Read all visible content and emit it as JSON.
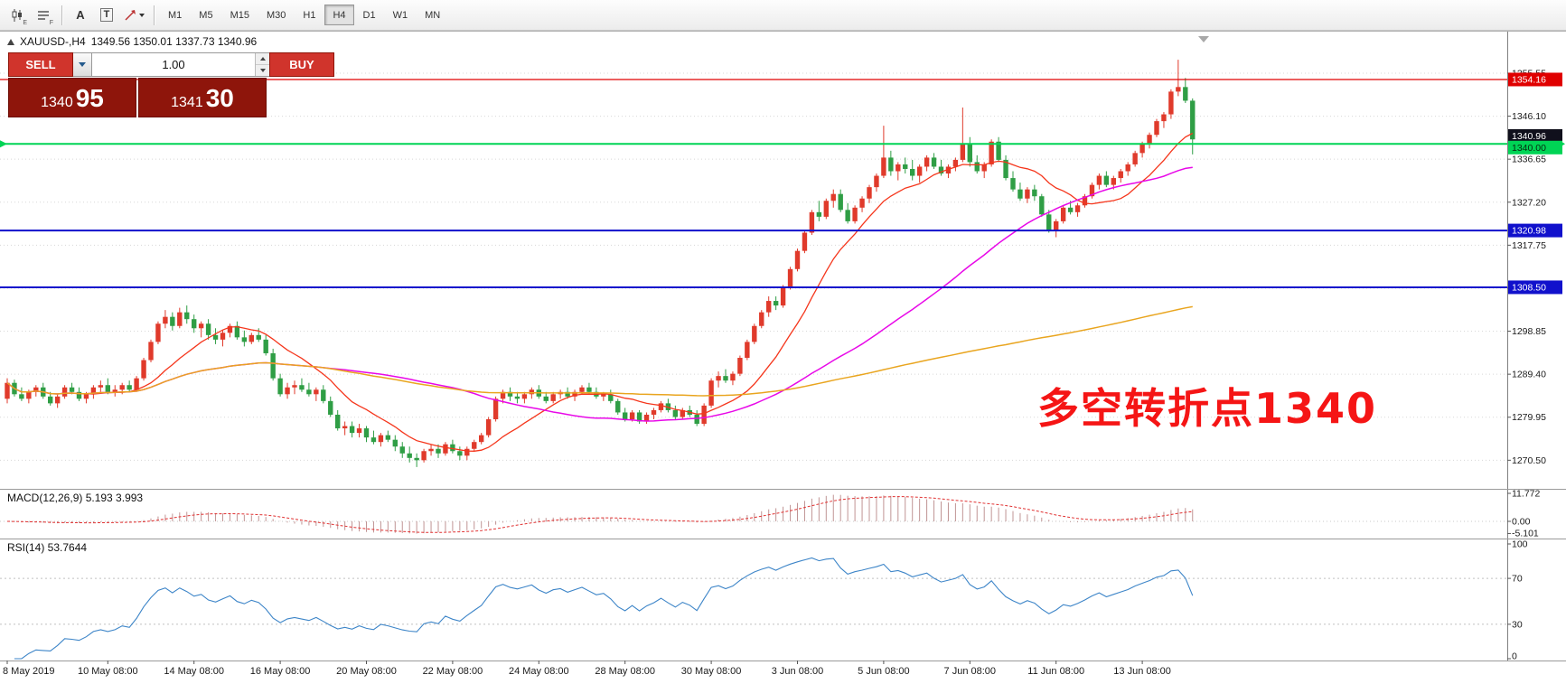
{
  "toolbar": {
    "icons": [
      {
        "name": "candlestick-chart-icon",
        "sub": "E"
      },
      {
        "name": "line-list-icon",
        "sub": "F"
      },
      {
        "name": "annotation-tool-icon",
        "glyph": "A"
      },
      {
        "name": "text-tool-icon",
        "glyph": "T"
      },
      {
        "name": "shapes-tool-icon"
      }
    ],
    "timeframes": [
      "M1",
      "M5",
      "M15",
      "M30",
      "H1",
      "H4",
      "D1",
      "W1",
      "MN"
    ],
    "active_timeframe": "H4"
  },
  "chart_header": {
    "symbol_period": "XAUUSD-,H4",
    "ohlc": "1349.56 1350.01 1337.73 1340.96"
  },
  "trade_panel": {
    "sell_label": "SELL",
    "buy_label": "BUY",
    "volume": "1.00",
    "sell_price_int": "1340",
    "sell_price_frac": "95",
    "buy_price_int": "1341",
    "buy_price_frac": "30"
  },
  "annotation": {
    "text": "多空转折点1340",
    "color": "#f51515"
  },
  "colors": {
    "sell_buy_button": "#d0342c",
    "price_display_bg": "#8e150b",
    "price_display_border": "#6d0e06"
  },
  "chart_data": {
    "type": "candlestick",
    "symbol": "XAUUSD-",
    "timeframe": "H4",
    "ylim": [
      1266.0,
      1361.5
    ],
    "bull_color": "#e03a2b",
    "bear_color": "#2f9e45",
    "grid": true,
    "y_ticks": [
      1355.55,
      1346.1,
      1336.65,
      1327.2,
      1317.75,
      1308.3,
      1298.85,
      1289.4,
      1279.95,
      1270.5
    ],
    "x_ticks": [
      {
        "bar": 0,
        "label": "8 May 2019"
      },
      {
        "bar": 14,
        "label": "10 May 08:00"
      },
      {
        "bar": 26,
        "label": "14 May 08:00"
      },
      {
        "bar": 38,
        "label": "16 May 08:00"
      },
      {
        "bar": 50,
        "label": "20 May 08:00"
      },
      {
        "bar": 62,
        "label": "22 May 08:00"
      },
      {
        "bar": 74,
        "label": "24 May 08:00"
      },
      {
        "bar": 86,
        "label": "28 May 08:00"
      },
      {
        "bar": 98,
        "label": "30 May 08:00"
      },
      {
        "bar": 110,
        "label": "3 Jun 08:00"
      },
      {
        "bar": 122,
        "label": "5 Jun 08:00"
      },
      {
        "bar": 134,
        "label": "7 Jun 08:00"
      },
      {
        "bar": 146,
        "label": "11 Jun 08:00"
      },
      {
        "bar": 158,
        "label": "13 Jun 08:00"
      }
    ],
    "candles": [
      [
        1284,
        1288.5,
        1283,
        1287.5
      ],
      [
        1287.5,
        1288.2,
        1284.5,
        1285
      ],
      [
        1285,
        1286.5,
        1283.5,
        1284
      ],
      [
        1284,
        1286,
        1283,
        1285.5
      ],
      [
        1285.5,
        1287,
        1284.5,
        1286.5
      ],
      [
        1286.5,
        1287.5,
        1284,
        1284.5
      ],
      [
        1284.5,
        1285.5,
        1282.5,
        1283
      ],
      [
        1283,
        1285,
        1282,
        1284.5
      ],
      [
        1284.5,
        1287,
        1284,
        1286.5
      ],
      [
        1286.5,
        1287.5,
        1285,
        1285.5
      ],
      [
        1285.5,
        1286.5,
        1283.5,
        1284
      ],
      [
        1284,
        1285.5,
        1283,
        1285
      ],
      [
        1285,
        1287,
        1284,
        1286.5
      ],
      [
        1286.5,
        1288,
        1285.5,
        1287
      ],
      [
        1287,
        1288.5,
        1285,
        1285.5
      ],
      [
        1285.5,
        1287,
        1284.5,
        1286
      ],
      [
        1286,
        1287.5,
        1285,
        1287
      ],
      [
        1287,
        1288,
        1285.5,
        1286
      ],
      [
        1286,
        1289,
        1285.5,
        1288.5
      ],
      [
        1288.5,
        1293,
        1288,
        1292.5
      ],
      [
        1292.5,
        1297,
        1292,
        1296.5
      ],
      [
        1296.5,
        1301,
        1296,
        1300.5
      ],
      [
        1300.5,
        1303.5,
        1299.5,
        1302
      ],
      [
        1302,
        1303,
        1299,
        1300
      ],
      [
        1300,
        1304,
        1299.5,
        1303
      ],
      [
        1303,
        1304.5,
        1300.5,
        1301.5
      ],
      [
        1301.5,
        1302.5,
        1298.5,
        1299.5
      ],
      [
        1299.5,
        1301,
        1297.5,
        1300.5
      ],
      [
        1300.5,
        1301.5,
        1297,
        1298
      ],
      [
        1298,
        1299.5,
        1296,
        1297
      ],
      [
        1297,
        1299,
        1295.5,
        1298.5
      ],
      [
        1298.5,
        1300.5,
        1297.5,
        1300
      ],
      [
        1300,
        1301,
        1297,
        1297.5
      ],
      [
        1297.5,
        1299,
        1295.5,
        1296.5
      ],
      [
        1296.5,
        1298.5,
        1296,
        1298
      ],
      [
        1298,
        1299.5,
        1296.5,
        1297
      ],
      [
        1297,
        1298,
        1293.5,
        1294
      ],
      [
        1294,
        1295,
        1288,
        1288.5
      ],
      [
        1288.5,
        1289.5,
        1284.5,
        1285
      ],
      [
        1285,
        1287.5,
        1284,
        1286.5
      ],
      [
        1286.5,
        1288,
        1285,
        1287
      ],
      [
        1287,
        1288.5,
        1285.5,
        1286
      ],
      [
        1286,
        1287.5,
        1284.5,
        1285
      ],
      [
        1285,
        1286.5,
        1283.5,
        1286
      ],
      [
        1286,
        1287,
        1283,
        1283.5
      ],
      [
        1283.5,
        1284.5,
        1280,
        1280.5
      ],
      [
        1280.5,
        1281.5,
        1277,
        1277.5
      ],
      [
        1277.5,
        1279,
        1276,
        1278
      ],
      [
        1278,
        1279,
        1275.5,
        1276.5
      ],
      [
        1276.5,
        1278.5,
        1275.5,
        1277.5
      ],
      [
        1277.5,
        1278,
        1274.5,
        1275.5
      ],
      [
        1275.5,
        1277,
        1274,
        1274.5
      ],
      [
        1274.5,
        1276.5,
        1273.5,
        1276
      ],
      [
        1276,
        1277,
        1274.5,
        1275
      ],
      [
        1275,
        1276,
        1272.5,
        1273.5
      ],
      [
        1273.5,
        1274.5,
        1271,
        1272
      ],
      [
        1272,
        1273.5,
        1270,
        1271
      ],
      [
        1271,
        1272,
        1269,
        1270.5
      ],
      [
        1270.5,
        1273,
        1270,
        1272.5
      ],
      [
        1272.5,
        1274,
        1271.5,
        1273
      ],
      [
        1273,
        1274,
        1271,
        1272
      ],
      [
        1272,
        1274.5,
        1271.5,
        1274
      ],
      [
        1274,
        1275,
        1272,
        1272.5
      ],
      [
        1272.5,
        1273.5,
        1270.5,
        1271.5
      ],
      [
        1271.5,
        1273.5,
        1270.5,
        1273
      ],
      [
        1273,
        1275,
        1272.5,
        1274.5
      ],
      [
        1274.5,
        1276.5,
        1274,
        1276
      ],
      [
        1276,
        1280,
        1275.5,
        1279.5
      ],
      [
        1279.5,
        1284.5,
        1279,
        1284
      ],
      [
        1284,
        1286,
        1283,
        1285.5
      ],
      [
        1285.5,
        1286.5,
        1283.5,
        1284.5
      ],
      [
        1284.5,
        1285.5,
        1283,
        1284
      ],
      [
        1284,
        1285.5,
        1283,
        1285
      ],
      [
        1285,
        1286.5,
        1284,
        1286
      ],
      [
        1286,
        1287,
        1284,
        1284.5
      ],
      [
        1284.5,
        1285.5,
        1283,
        1283.5
      ],
      [
        1283.5,
        1285.5,
        1283,
        1285
      ],
      [
        1285,
        1286,
        1284,
        1285.5
      ],
      [
        1285.5,
        1286.5,
        1284,
        1284.5
      ],
      [
        1284.5,
        1286,
        1283.5,
        1285.5
      ],
      [
        1285.5,
        1287,
        1285,
        1286.5
      ],
      [
        1286.5,
        1287.5,
        1285,
        1285.5
      ],
      [
        1285.5,
        1286.5,
        1284,
        1284.5
      ],
      [
        1284.5,
        1285.5,
        1283.5,
        1285
      ],
      [
        1285,
        1286,
        1283,
        1283.5
      ],
      [
        1283.5,
        1284,
        1280.5,
        1281
      ],
      [
        1281,
        1282,
        1279,
        1279.5
      ],
      [
        1279.5,
        1281.5,
        1279,
        1281
      ],
      [
        1281,
        1281.5,
        1278.5,
        1279
      ],
      [
        1279,
        1281,
        1278.5,
        1280.5
      ],
      [
        1280.5,
        1282,
        1279.5,
        1281.5
      ],
      [
        1281.5,
        1283.5,
        1281,
        1283
      ],
      [
        1283,
        1284,
        1281,
        1281.5
      ],
      [
        1281.5,
        1282.5,
        1279.5,
        1280
      ],
      [
        1280,
        1282,
        1279.5,
        1281.5
      ],
      [
        1281.5,
        1282.5,
        1280,
        1280.5
      ],
      [
        1280.5,
        1281.5,
        1278,
        1278.5
      ],
      [
        1278.5,
        1283,
        1278,
        1282.5
      ],
      [
        1282.5,
        1288.5,
        1282,
        1288
      ],
      [
        1288,
        1290,
        1286.5,
        1289
      ],
      [
        1289,
        1290.5,
        1287.5,
        1288
      ],
      [
        1288,
        1290,
        1287,
        1289.5
      ],
      [
        1289.5,
        1293.5,
        1289,
        1293
      ],
      [
        1293,
        1297,
        1292.5,
        1296.5
      ],
      [
        1296.5,
        1300.5,
        1296,
        1300
      ],
      [
        1300,
        1303.5,
        1299.5,
        1303
      ],
      [
        1303,
        1306.5,
        1302,
        1305.5
      ],
      [
        1305.5,
        1306.5,
        1303.5,
        1304.5
      ],
      [
        1304.5,
        1309,
        1304,
        1308.5
      ],
      [
        1308.5,
        1313,
        1308,
        1312.5
      ],
      [
        1312.5,
        1317,
        1312,
        1316.5
      ],
      [
        1316.5,
        1321,
        1316,
        1320.5
      ],
      [
        1320.5,
        1325.5,
        1320,
        1325
      ],
      [
        1325,
        1327.5,
        1323,
        1324
      ],
      [
        1324,
        1328,
        1323.5,
        1327.5
      ],
      [
        1327.5,
        1330,
        1326,
        1329
      ],
      [
        1329,
        1330,
        1325,
        1325.5
      ],
      [
        1325.5,
        1327,
        1322.5,
        1323
      ],
      [
        1323,
        1326.5,
        1322.5,
        1326
      ],
      [
        1326,
        1328.5,
        1325,
        1328
      ],
      [
        1328,
        1331,
        1327,
        1330.5
      ],
      [
        1330.5,
        1333.5,
        1329.5,
        1333
      ],
      [
        1333,
        1344,
        1332.5,
        1337
      ],
      [
        1337,
        1338.5,
        1333,
        1334
      ],
      [
        1334,
        1336,
        1332,
        1335.5
      ],
      [
        1335.5,
        1337,
        1333.5,
        1334.5
      ],
      [
        1334.5,
        1336.5,
        1332,
        1333
      ],
      [
        1333,
        1335.5,
        1331.5,
        1335
      ],
      [
        1335,
        1337.5,
        1334,
        1337
      ],
      [
        1337,
        1338,
        1334.5,
        1335
      ],
      [
        1335,
        1336.5,
        1333,
        1333.5
      ],
      [
        1333.5,
        1335.5,
        1332.5,
        1335
      ],
      [
        1335,
        1337,
        1334,
        1336.5
      ],
      [
        1336.5,
        1348,
        1336,
        1340
      ],
      [
        1340,
        1341.5,
        1335,
        1336
      ],
      [
        1336,
        1337.5,
        1333.5,
        1334
      ],
      [
        1334,
        1336,
        1332.5,
        1335.5
      ],
      [
        1335.5,
        1341,
        1335,
        1340.5
      ],
      [
        1340.5,
        1341.5,
        1336,
        1336.5
      ],
      [
        1336.5,
        1337.5,
        1332,
        1332.5
      ],
      [
        1332.5,
        1334,
        1329.5,
        1330
      ],
      [
        1330,
        1331.5,
        1327.5,
        1328
      ],
      [
        1328,
        1330.5,
        1327,
        1330
      ],
      [
        1330,
        1331,
        1327.5,
        1328.5
      ],
      [
        1328.5,
        1329,
        1324,
        1324.5
      ],
      [
        1324.5,
        1325.5,
        1320.5,
        1321
      ],
      [
        1321,
        1323.5,
        1319.5,
        1323
      ],
      [
        1323,
        1326.5,
        1322.5,
        1326
      ],
      [
        1326,
        1327.5,
        1324.5,
        1325
      ],
      [
        1325,
        1327,
        1324,
        1326.5
      ],
      [
        1326.5,
        1329,
        1326,
        1328.5
      ],
      [
        1328.5,
        1331.5,
        1328,
        1331
      ],
      [
        1331,
        1333.5,
        1330,
        1333
      ],
      [
        1333,
        1334,
        1330.5,
        1331
      ],
      [
        1331,
        1333,
        1330,
        1332.5
      ],
      [
        1332.5,
        1334.5,
        1331.5,
        1334
      ],
      [
        1334,
        1336,
        1333,
        1335.5
      ],
      [
        1335.5,
        1338.5,
        1335,
        1338
      ],
      [
        1338,
        1340.5,
        1337,
        1340
      ],
      [
        1340,
        1342.5,
        1339,
        1342
      ],
      [
        1342,
        1345.5,
        1341.5,
        1345
      ],
      [
        1345,
        1347,
        1343.5,
        1346.5
      ],
      [
        1346.5,
        1352,
        1345.5,
        1351.5
      ],
      [
        1351.5,
        1358.5,
        1350.5,
        1352.5
      ],
      [
        1352.5,
        1354.5,
        1349,
        1349.5
      ],
      [
        1349.5,
        1350,
        1337.7,
        1341
      ]
    ],
    "moving_averages": [
      {
        "period": 12,
        "color": "#f5361c",
        "width": 1.3
      },
      {
        "period": 45,
        "color": "#e808e8",
        "width": 1.5
      },
      {
        "period": 140,
        "color": "#e9a51f",
        "width": 1.5
      }
    ],
    "hlines": [
      {
        "price": 1354.16,
        "label": "1354.16",
        "color": "#e00000",
        "width": 1.3,
        "label_color": "#ffffff"
      },
      {
        "price": 1340.0,
        "label": "1340.00",
        "color": "#00d455",
        "width": 2,
        "label_color": "#062b10",
        "arrows": true,
        "tag_dy": 4
      },
      {
        "price": 1320.98,
        "label": "1320.98",
        "color": "#1111cc",
        "width": 2,
        "label_color": "#ffffff"
      },
      {
        "price": 1308.5,
        "label": "1308.50",
        "color": "#1111cc",
        "width": 2,
        "label_color": "#ffffff"
      }
    ],
    "current_price": 1340.96,
    "macd": {
      "label": "MACD(12,26,9) 5.193 3.993",
      "fast": 12,
      "slow": 26,
      "signal": 9,
      "ticks": [
        {
          "v": 11.772,
          "label": "11.772"
        },
        {
          "v": 0,
          "label": "0.00"
        },
        {
          "v": -5.101,
          "label": "-5.101"
        }
      ],
      "histogram_color": "#c09494",
      "signal_color": "#e03131"
    },
    "rsi": {
      "label": "RSI(14) 53.7644",
      "period": 14,
      "color": "#3d85c8",
      "ticks": [
        100,
        70,
        30,
        0
      ],
      "levels": [
        70,
        30
      ]
    }
  }
}
